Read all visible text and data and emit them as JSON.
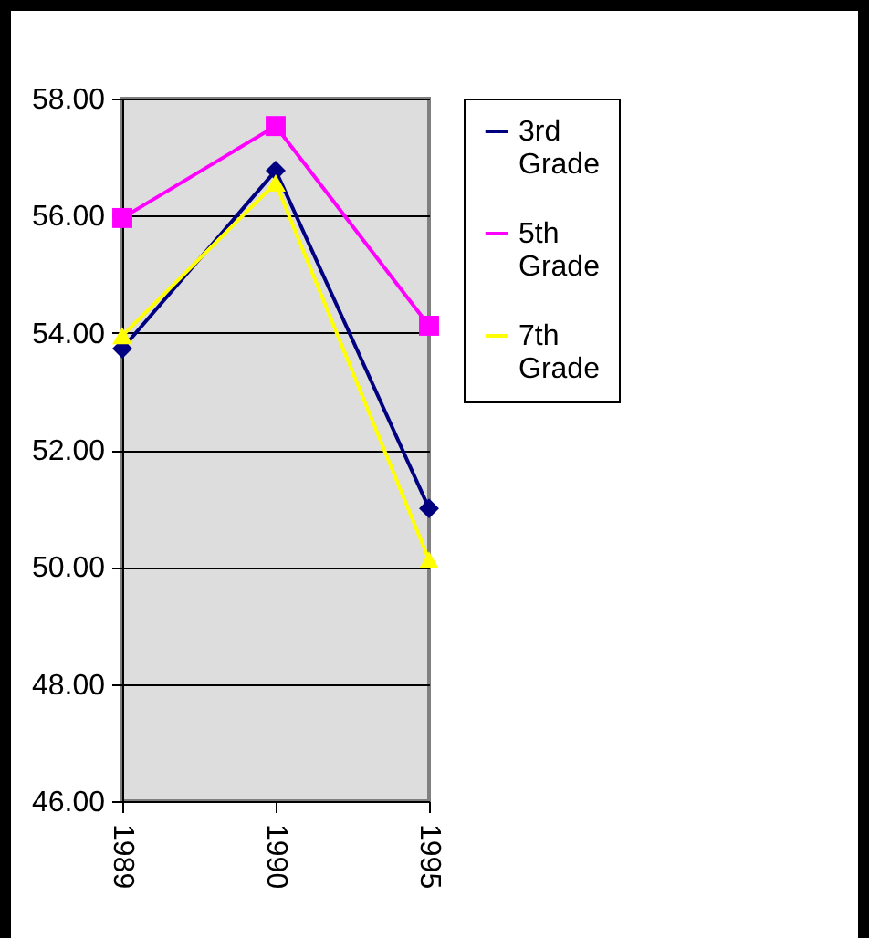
{
  "chart_data": {
    "type": "line",
    "categories": [
      "1989",
      "1990",
      "1995"
    ],
    "series": [
      {
        "name": "3rd Grade",
        "color": "#000080",
        "marker": "diamond",
        "values": [
          53.73,
          56.77,
          51.0
        ]
      },
      {
        "name": "5th Grade",
        "color": "#ff00ff",
        "marker": "square",
        "values": [
          55.96,
          57.53,
          54.12
        ]
      },
      {
        "name": "7th Grade",
        "color": "#ffff00",
        "marker": "triangle",
        "values": [
          53.95,
          56.56,
          50.12
        ]
      }
    ],
    "ylim": [
      46,
      58
    ],
    "yticks": [
      {
        "value": 46,
        "label": "46.00"
      },
      {
        "value": 48,
        "label": "48.00"
      },
      {
        "value": 50,
        "label": "50.00"
      },
      {
        "value": 52,
        "label": "52.00"
      },
      {
        "value": 54,
        "label": "54.00"
      },
      {
        "value": 56,
        "label": "56.00"
      },
      {
        "value": 58,
        "label": "58.00"
      }
    ],
    "grid": "y",
    "legend": "right",
    "line_style": "solid"
  }
}
